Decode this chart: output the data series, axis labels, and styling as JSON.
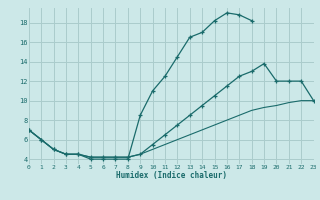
{
  "title": "",
  "xlabel": "Humidex (Indice chaleur)",
  "bg_color": "#cce8e8",
  "grid_color": "#aacccc",
  "line_color": "#1a6b6b",
  "line1_x": [
    0,
    1,
    2,
    3,
    4,
    5,
    6,
    7,
    8,
    9,
    10,
    11,
    12,
    13,
    14,
    15,
    16,
    17,
    18
  ],
  "line1_y": [
    7.0,
    6.0,
    5.0,
    4.5,
    4.5,
    4.0,
    4.0,
    4.0,
    4.0,
    8.5,
    11.0,
    12.5,
    14.5,
    16.5,
    17.0,
    18.2,
    19.0,
    18.8,
    18.2
  ],
  "line2_x": [
    0,
    1,
    2,
    3,
    4,
    5,
    6,
    7,
    8,
    9,
    10,
    11,
    12,
    13,
    14,
    15,
    16,
    17,
    18,
    19,
    20,
    21,
    22,
    23
  ],
  "line2_y": [
    7.0,
    6.0,
    5.0,
    4.5,
    4.5,
    4.2,
    4.2,
    4.2,
    4.2,
    4.5,
    5.5,
    6.5,
    7.5,
    8.5,
    9.5,
    10.5,
    11.5,
    12.5,
    13.0,
    13.8,
    12.0,
    12.0,
    12.0,
    10.0
  ],
  "line3_x": [
    0,
    1,
    2,
    3,
    4,
    5,
    6,
    7,
    8,
    9,
    10,
    11,
    12,
    13,
    14,
    15,
    16,
    17,
    18,
    19,
    20,
    21,
    22,
    23
  ],
  "line3_y": [
    7.0,
    6.0,
    5.0,
    4.5,
    4.5,
    4.2,
    4.2,
    4.2,
    4.2,
    4.5,
    5.0,
    5.5,
    6.0,
    6.5,
    7.0,
    7.5,
    8.0,
    8.5,
    9.0,
    9.3,
    9.5,
    9.8,
    10.0,
    10.0
  ],
  "xlim": [
    0,
    23
  ],
  "ylim": [
    3.5,
    19.5
  ],
  "yticks": [
    4,
    6,
    8,
    10,
    12,
    14,
    16,
    18
  ],
  "xticks": [
    0,
    1,
    2,
    3,
    4,
    5,
    6,
    7,
    8,
    9,
    10,
    11,
    12,
    13,
    14,
    15,
    16,
    17,
    18,
    19,
    20,
    21,
    22,
    23
  ]
}
